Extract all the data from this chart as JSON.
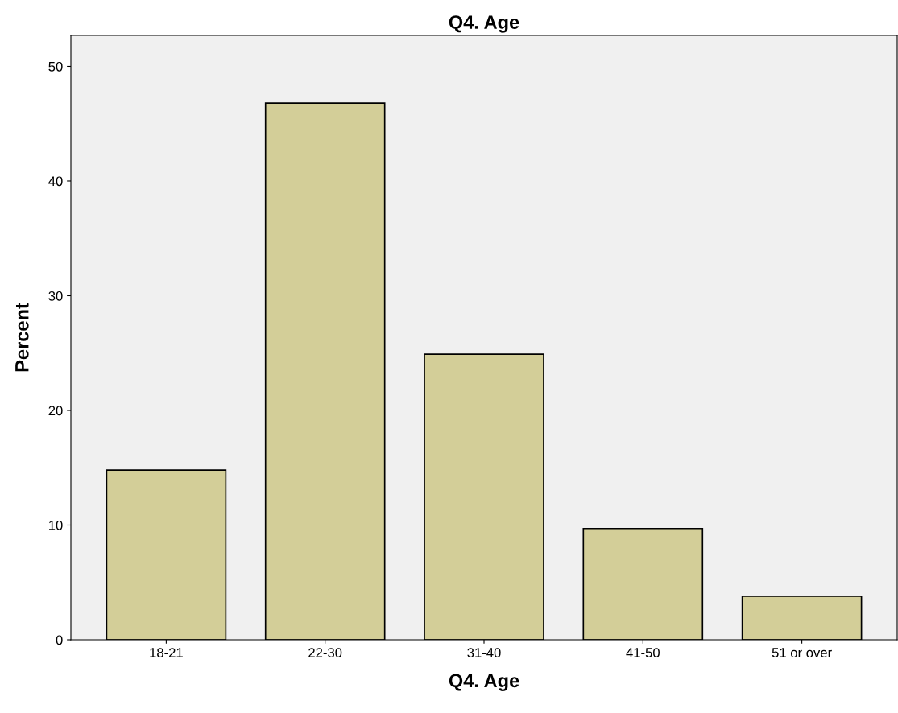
{
  "chart_data": {
    "type": "bar",
    "title": "Q4. Age",
    "xlabel": "Q4. Age",
    "ylabel": "Percent",
    "categories": [
      "18-21",
      "22-30",
      "31-40",
      "41-50",
      "51 or over"
    ],
    "values": [
      14.8,
      46.8,
      24.9,
      9.7,
      3.8
    ],
    "color": "#d3ce98",
    "ylim": [
      0,
      52.7
    ],
    "yticks": [
      0,
      10,
      20,
      30,
      40,
      50
    ],
    "grid": false,
    "legend": false
  }
}
